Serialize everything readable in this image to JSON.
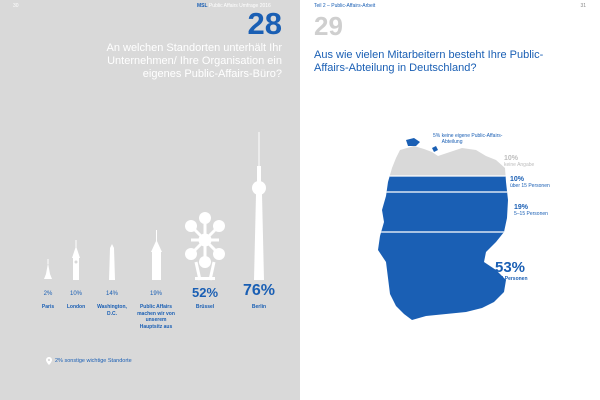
{
  "left_page": {
    "page_number": "30",
    "running_head_bold": "MSL",
    "running_head": "Public Affairs Umfrage 2016",
    "question_number": "28",
    "question": "An welchen Standorten unterhält Ihr Unternehmen/ Ihre Organisation ein eigenes Public-Affairs-Büro?",
    "locations": [
      {
        "percent": "2%",
        "name": "Paris",
        "icon": "eiffel-tower-icon"
      },
      {
        "percent": "10%",
        "name": "London",
        "icon": "big-ben-icon"
      },
      {
        "percent": "14%",
        "name": "Washington, D.C.",
        "icon": "washington-monument-icon"
      },
      {
        "percent": "19%",
        "name": "Public Affairs machen wir von unserem Hauptsitz aus",
        "icon": "skyscraper-icon"
      },
      {
        "percent": "52%",
        "name": "Brüssel",
        "icon": "atomium-icon"
      },
      {
        "percent": "76%",
        "name": "Berlin",
        "icon": "tv-tower-icon"
      }
    ],
    "footnote": "2% sonstige wichtige Standorte",
    "footnote_icon": "location-pin-icon"
  },
  "right_page": {
    "page_number": "31",
    "running_head": "Teil 2 – Public-Affairs-Arbeit",
    "question_number": "29",
    "question": "Aus wie vielen Mitarbeitern besteht Ihre Public-Affairs-Abteilung in Deutschland?",
    "map_segments": [
      {
        "value": "5%",
        "label": "keine eigene Public-Affairs-Abteilung"
      },
      {
        "value": "10%",
        "label": "keine Angabe"
      },
      {
        "value": "10%",
        "label": "über 15 Personen"
      },
      {
        "value": "19%",
        "label": "5–15 Personen"
      },
      {
        "value": "53%",
        "label": "1–4 Personen"
      }
    ],
    "colors": {
      "primary": "#1a5fb4",
      "grey": "#d9d9d9"
    }
  }
}
